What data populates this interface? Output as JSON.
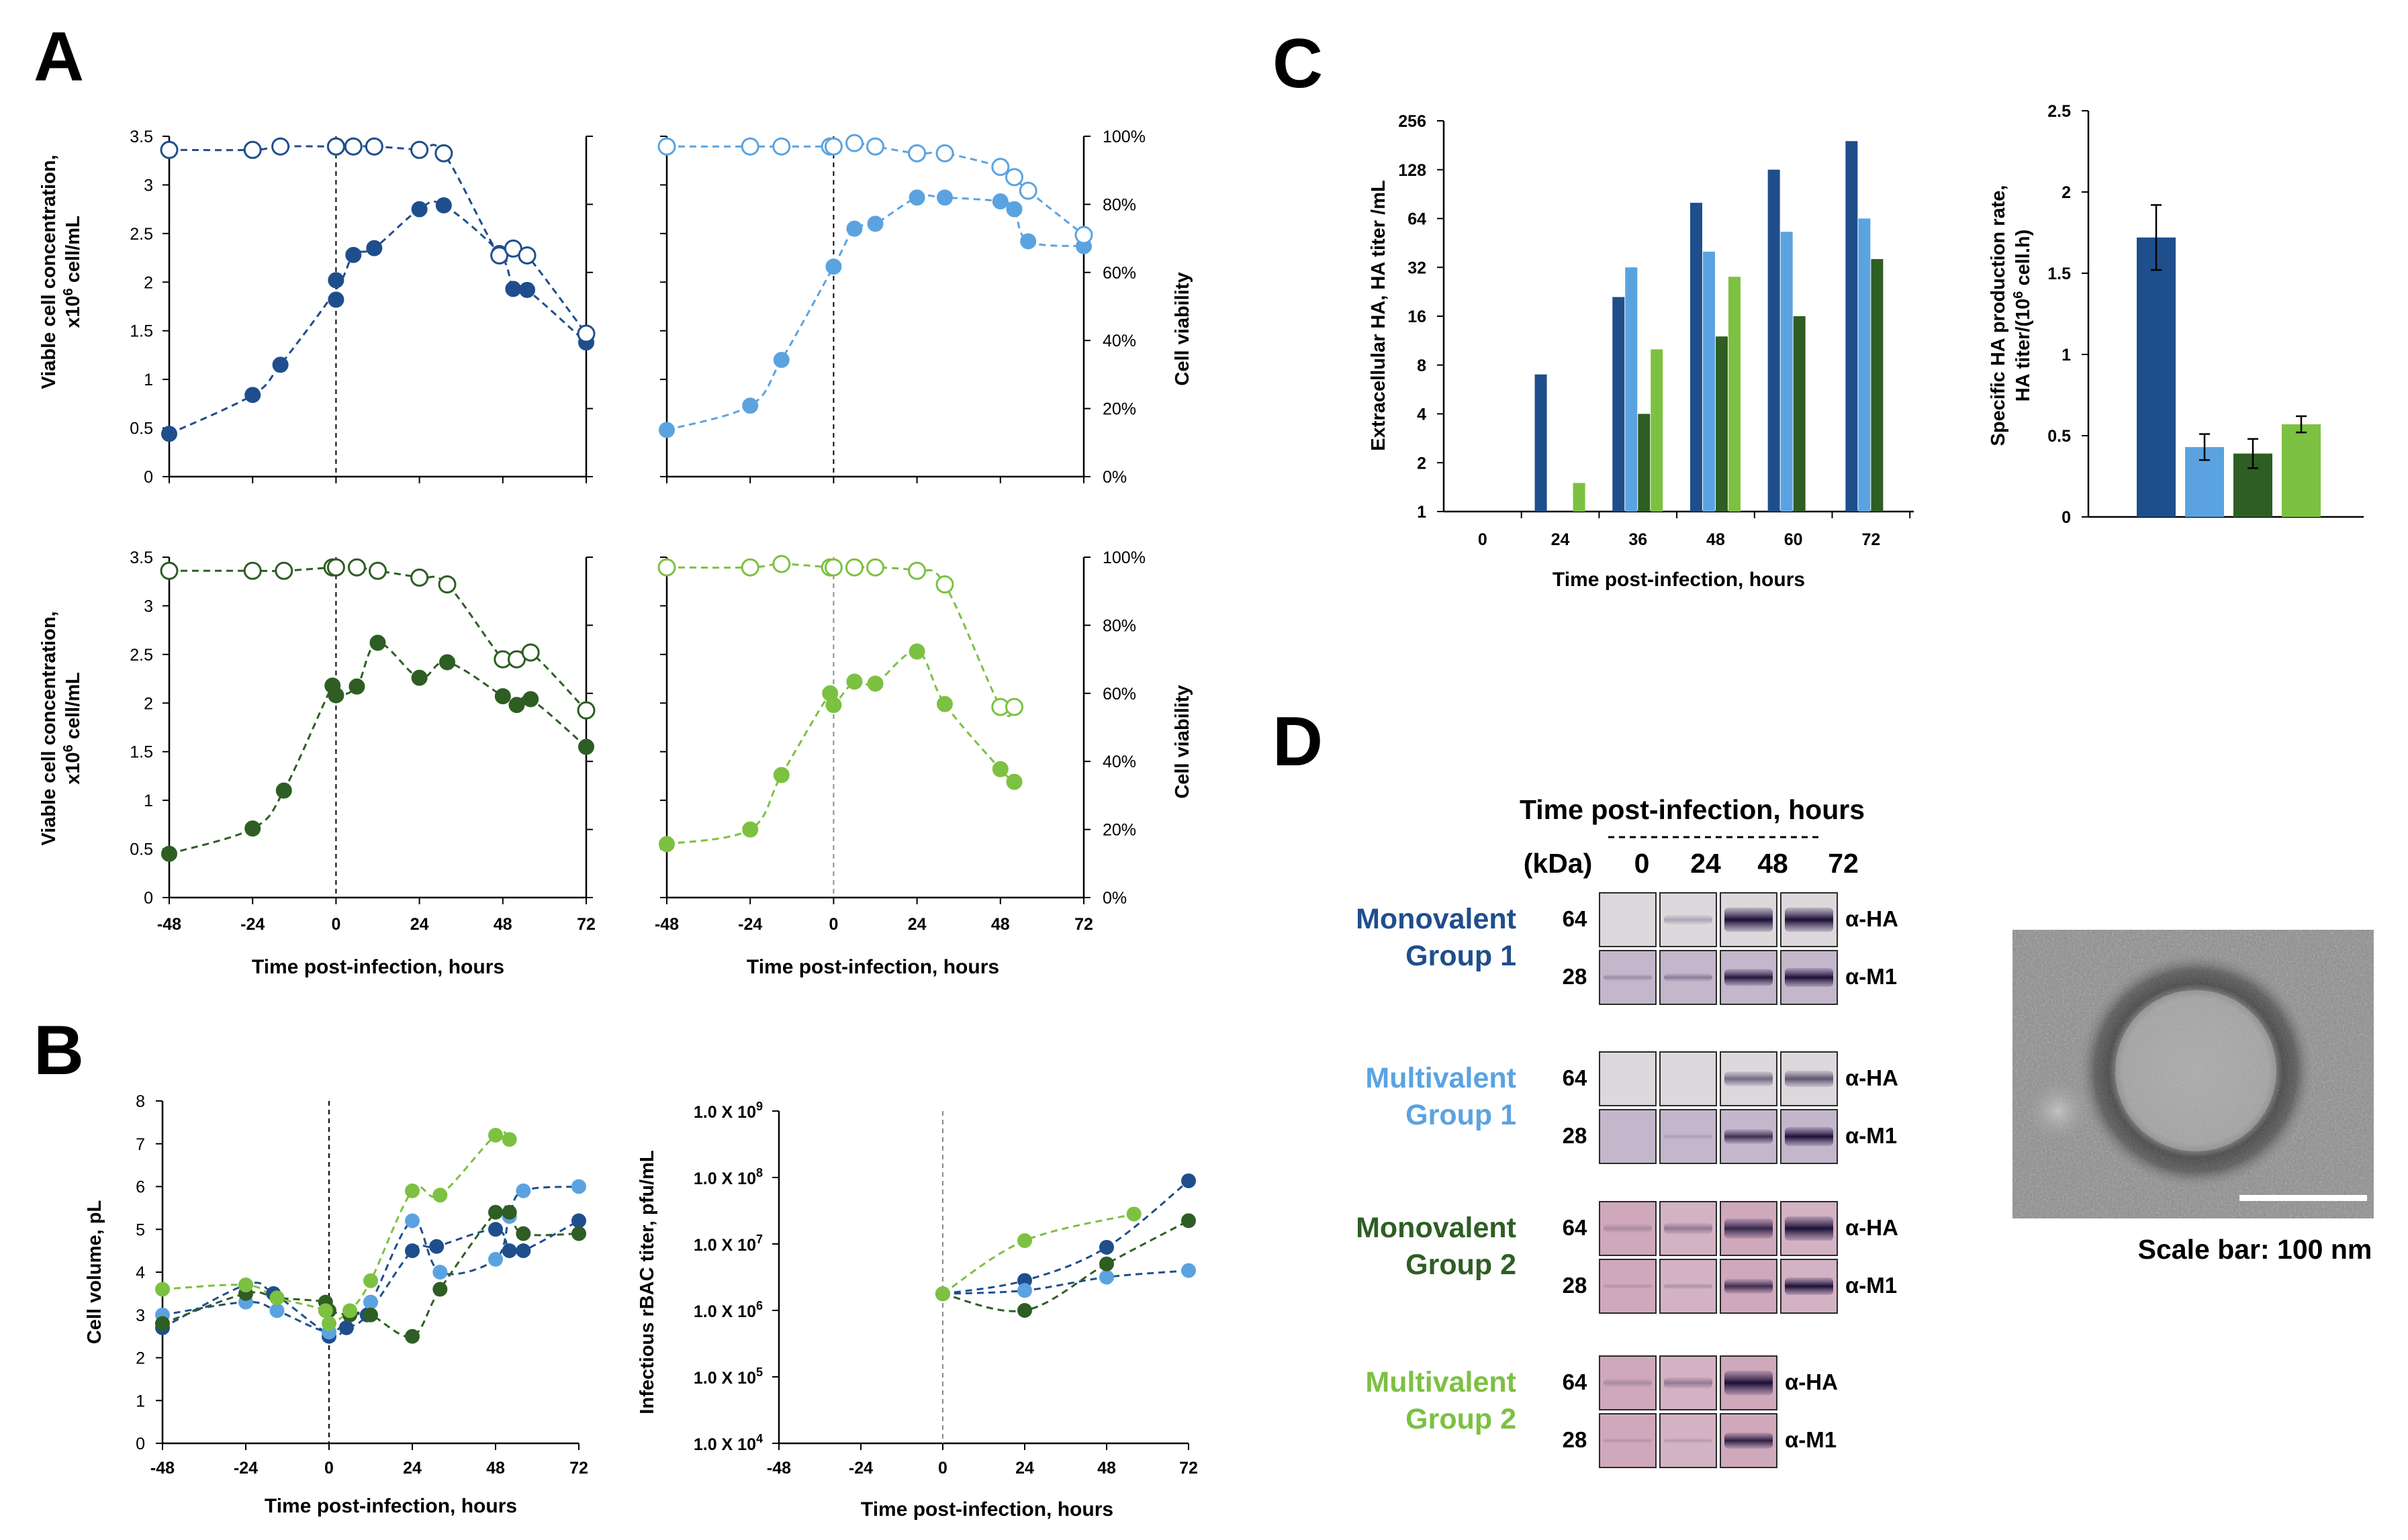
{
  "panel_labels": {
    "a": "A",
    "b": "B",
    "c": "C",
    "d": "D"
  },
  "colors": {
    "mono1": "#1f4e8c",
    "multi1": "#5ba3e0",
    "mono2": "#2e5e23",
    "multi2": "#7cc142",
    "axis": "#000000",
    "dash": "#000000",
    "gray_dash": "#8a8a8a"
  },
  "panelA": {
    "ylabel_left": "Viable cell concentration,",
    "ylabel_left_unit": "x10",
    "ylabel_left_sup": "6",
    "ylabel_left_unit2": " cell/mL",
    "ylabel_right": "Cell viability",
    "xlabel": "Time post-infection, hours",
    "left_ticks": [
      "0",
      "0.5",
      "1",
      "1.5",
      "2",
      "2.5",
      "3",
      "3.5"
    ],
    "right_ticks": [
      "0%",
      "20%",
      "40%",
      "60%",
      "80%",
      "100%"
    ],
    "x_ticks": [
      "-48",
      "-24",
      "0",
      "24",
      "48",
      "72"
    ]
  },
  "chart_data": [
    {
      "type": "scatter",
      "panel": "A",
      "subplot": "top-left",
      "group": "Monovalent Group 1",
      "x_range": [
        -48,
        72
      ],
      "left_range": [
        0,
        3.5
      ],
      "right_range": [
        0,
        100
      ],
      "concentration": {
        "x": [
          -48,
          -24,
          -16,
          0,
          0,
          5,
          11,
          24,
          31,
          47,
          51,
          55,
          72
        ],
        "y": [
          0.44,
          0.84,
          1.15,
          1.82,
          2.02,
          2.28,
          2.35,
          2.75,
          2.79,
          2.3,
          1.93,
          1.92,
          1.38
        ]
      },
      "viability": {
        "x": [
          -48,
          -24,
          -16,
          0,
          0,
          5,
          11,
          24,
          31,
          47,
          51,
          55,
          72
        ],
        "y": [
          96,
          96,
          97,
          97,
          97,
          97,
          97,
          96,
          95,
          65,
          67,
          65,
          42
        ]
      }
    },
    {
      "type": "scatter",
      "panel": "A",
      "subplot": "top-right",
      "group": "Multivalent Group 1",
      "x_range": [
        -48,
        72
      ],
      "left_range": [
        0,
        3.5
      ],
      "right_range": [
        0,
        100
      ],
      "concentration": {
        "x": [
          -48,
          -24,
          -15,
          0,
          6,
          12,
          24,
          32,
          48,
          52,
          56,
          72
        ],
        "y": [
          0.48,
          0.73,
          1.2,
          2.16,
          2.55,
          2.6,
          2.87,
          2.87,
          2.83,
          2.75,
          2.42,
          2.37
        ]
      },
      "viability": {
        "x": [
          -48,
          -24,
          -15,
          -1,
          0,
          6,
          12,
          24,
          32,
          48,
          52,
          56,
          72
        ],
        "y": [
          97,
          97,
          97,
          97,
          97,
          98,
          97,
          95,
          95,
          91,
          88,
          84,
          71
        ]
      }
    },
    {
      "type": "scatter",
      "panel": "A",
      "subplot": "bottom-left",
      "group": "Monovalent Group 2",
      "x_range": [
        -48,
        72
      ],
      "left_range": [
        0,
        3.5
      ],
      "right_range": [
        0,
        100
      ],
      "concentration": {
        "x": [
          -48,
          -24,
          -15,
          -1,
          0,
          6,
          12,
          24,
          32,
          48,
          52,
          56,
          72
        ],
        "y": [
          0.45,
          0.71,
          1.1,
          2.18,
          2.08,
          2.17,
          2.62,
          2.26,
          2.42,
          2.07,
          1.98,
          2.04,
          1.55
        ]
      },
      "viability": {
        "x": [
          -48,
          -24,
          -15,
          -1,
          0,
          6,
          12,
          24,
          32,
          48,
          52,
          56,
          72
        ],
        "y": [
          96,
          96,
          96,
          97,
          97,
          97,
          96,
          94,
          92,
          70,
          70,
          72,
          55
        ]
      }
    },
    {
      "type": "scatter",
      "panel": "A",
      "subplot": "bottom-right",
      "group": "Multivalent Group 2",
      "x_range": [
        -48,
        72
      ],
      "left_range": [
        0,
        3.5
      ],
      "right_range": [
        0,
        100
      ],
      "concentration": {
        "x": [
          -48,
          -24,
          -15,
          -1,
          0,
          6,
          12,
          24,
          32,
          48,
          52
        ],
        "y": [
          0.55,
          0.7,
          1.26,
          2.1,
          1.98,
          2.22,
          2.2,
          2.53,
          1.99,
          1.32,
          1.19
        ]
      },
      "viability": {
        "x": [
          -48,
          -24,
          -15,
          -1,
          0,
          6,
          12,
          24,
          32,
          48,
          52
        ],
        "y": [
          97,
          97,
          98,
          97,
          97,
          97,
          97,
          96,
          92,
          56,
          56
        ]
      }
    },
    {
      "type": "scatter",
      "panel": "B",
      "subplot": "left",
      "xlabel": "Time post-infection, hours",
      "ylabel": "Cell volume, pL",
      "x_range": [
        -48,
        72
      ],
      "y_range": [
        0,
        8
      ],
      "x_ticks": [
        "-48",
        "-24",
        "0",
        "24",
        "48",
        "72"
      ],
      "y_ticks": [
        "0",
        "1",
        "2",
        "3",
        "4",
        "5",
        "6",
        "7",
        "8"
      ],
      "series": [
        {
          "name": "Monovalent Group 1",
          "x": [
            -48,
            -24,
            -16,
            0,
            0,
            5,
            11,
            24,
            31,
            48,
            52,
            56,
            72
          ],
          "y": [
            2.7,
            3.7,
            3.5,
            2.6,
            2.5,
            2.7,
            3.0,
            4.5,
            4.6,
            5.0,
            4.5,
            4.5,
            5.2
          ]
        },
        {
          "name": "Multivalent Group 1",
          "x": [
            -48,
            -24,
            -15,
            0,
            6,
            12,
            24,
            32,
            48,
            52,
            56,
            72
          ],
          "y": [
            3.0,
            3.3,
            3.1,
            2.6,
            3.0,
            3.3,
            5.2,
            4.0,
            4.3,
            5.3,
            5.9,
            6.0
          ]
        },
        {
          "name": "Monovalent Group 2",
          "x": [
            -48,
            -24,
            -15,
            -1,
            0,
            6,
            12,
            24,
            32,
            48,
            52,
            56,
            72
          ],
          "y": [
            2.8,
            3.5,
            3.4,
            3.3,
            3.1,
            3.0,
            3.0,
            2.5,
            3.6,
            5.4,
            5.4,
            4.9,
            4.9
          ]
        },
        {
          "name": "Multivalent Group 2",
          "x": [
            -48,
            -24,
            -15,
            -1,
            0,
            6,
            12,
            24,
            32,
            48,
            52
          ],
          "y": [
            3.6,
            3.7,
            3.4,
            3.1,
            2.8,
            3.1,
            3.8,
            5.9,
            5.8,
            7.2,
            7.1
          ]
        }
      ]
    },
    {
      "type": "scatter",
      "panel": "B",
      "subplot": "right",
      "xlabel": "Time post-infection, hours",
      "ylabel": "Infectious rBAC titer, pfu/mL",
      "y_scale": "log10",
      "x_range": [
        -48,
        72
      ],
      "y_range_log10": [
        4,
        9
      ],
      "x_ticks": [
        "-48",
        "-24",
        "0",
        "24",
        "48",
        "72"
      ],
      "y_tick_base": "1.0 X 10",
      "y_tick_exps": [
        "4",
        "5",
        "6",
        "7",
        "8",
        "9"
      ],
      "series": [
        {
          "name": "Monovalent Group 1",
          "x": [
            0,
            24,
            48,
            72
          ],
          "log10_y": [
            6.25,
            6.45,
            6.95,
            7.95
          ]
        },
        {
          "name": "Multivalent Group 1",
          "x": [
            0,
            24,
            48,
            72
          ],
          "log10_y": [
            6.25,
            6.3,
            6.5,
            6.6
          ]
        },
        {
          "name": "Monovalent Group 2",
          "x": [
            0,
            24,
            48,
            72
          ],
          "log10_y": [
            6.25,
            6.0,
            6.7,
            7.35
          ]
        },
        {
          "name": "Multivalent Group 2",
          "x": [
            0,
            24,
            56
          ],
          "log10_y": [
            6.25,
            7.05,
            7.45
          ]
        }
      ]
    },
    {
      "type": "bar",
      "panel": "C",
      "subplot": "left",
      "xlabel": "Time post-infection, hours",
      "ylabel": "Extracellular HA, HA titer /mL",
      "y_scale": "log2",
      "y_range": [
        1,
        256
      ],
      "categories": [
        "0",
        "24",
        "36",
        "48",
        "60",
        "72"
      ],
      "y_ticks": [
        "1",
        "2",
        "4",
        "8",
        "16",
        "32",
        "64",
        "128",
        "256"
      ],
      "series": [
        {
          "name": "Monovalent Group 1",
          "values": [
            null,
            7,
            21,
            80,
            128,
            192
          ]
        },
        {
          "name": "Multivalent Group 1",
          "values": [
            null,
            null,
            32,
            40,
            53,
            64
          ]
        },
        {
          "name": "Monovalent Group 2",
          "values": [
            null,
            null,
            4,
            12,
            16,
            36
          ]
        },
        {
          "name": "Multivalent Group 2",
          "values": [
            null,
            1.5,
            10,
            28,
            null,
            null
          ]
        }
      ]
    },
    {
      "type": "bar",
      "panel": "C",
      "subplot": "right",
      "ylabel": "Specific HA production rate,",
      "ylabel2": "HA titer/(10",
      "ylabel2_sup": "6",
      "ylabel2_end": " cell.h)",
      "y_range": [
        0,
        2.5
      ],
      "y_ticks": [
        "0",
        "0.5",
        "1",
        "1.5",
        "2",
        "2.5"
      ],
      "categories": [
        "Monovalent Group 1",
        "Multivalent Group 1",
        "Monovalent Group 2",
        "Multivalent Group 2"
      ],
      "values": [
        1.72,
        0.43,
        0.39,
        0.57
      ],
      "errors": [
        0.2,
        0.08,
        0.09,
        0.05
      ]
    }
  ],
  "panelD": {
    "header": "Time post-infection, hours",
    "kda_label": "(kDa)",
    "timepoints": [
      "0",
      "24",
      "48",
      "72"
    ],
    "groups": [
      {
        "line1": "Monovalent",
        "line2": "Group 1",
        "color_key": "mono1",
        "mw": [
          "64",
          "28"
        ],
        "bands": [
          "α-HA",
          "α-M1"
        ]
      },
      {
        "line1": "Multivalent",
        "line2": "Group 1",
        "color_key": "multi1",
        "mw": [
          "64",
          "28"
        ],
        "bands": [
          "α-HA",
          "α-M1"
        ]
      },
      {
        "line1": "Monovalent",
        "line2": "Group 2",
        "color_key": "mono2",
        "mw": [
          "64",
          "28"
        ],
        "bands": [
          "α-HA",
          "α-M1"
        ]
      },
      {
        "line1": "Multivalent",
        "line2": "Group 2",
        "color_key": "multi2",
        "mw": [
          "64",
          "28"
        ],
        "bands": [
          "α-HA",
          "α-M1"
        ]
      }
    ],
    "scale_bar": "Scale bar: 100 nm"
  }
}
